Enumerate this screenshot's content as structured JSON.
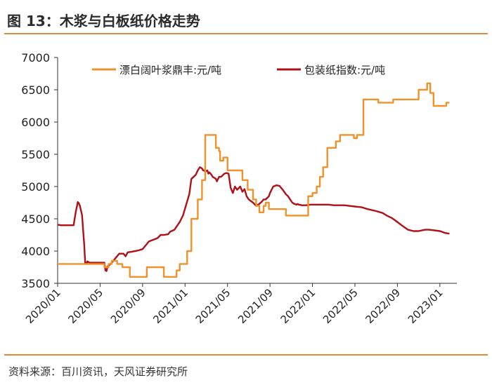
{
  "header": {
    "title": "图 13：木浆与白板纸价格走势"
  },
  "footer": {
    "source": "资料来源：百川资讯，天风证券研究所"
  },
  "colors": {
    "accent": "#E3893A",
    "pulp": "#F0922B",
    "board": "#B01018"
  },
  "chart_data": {
    "type": "line",
    "title": "图 13：木浆与白板纸价格走势",
    "xlabel": "",
    "ylabel": "",
    "ylim": [
      3500,
      7000
    ],
    "yticks": [
      3500,
      4000,
      4500,
      5000,
      5500,
      6000,
      6500,
      7000
    ],
    "xlim": [
      0,
      37.6
    ],
    "xticks": [
      {
        "label": "2020/01",
        "x": 0
      },
      {
        "label": "2020/05",
        "x": 4
      },
      {
        "label": "2020/09",
        "x": 8
      },
      {
        "label": "2021/01",
        "x": 12
      },
      {
        "label": "2021/05",
        "x": 16
      },
      {
        "label": "2021/09",
        "x": 20
      },
      {
        "label": "2022/01",
        "x": 24
      },
      {
        "label": "2022/05",
        "x": 28
      },
      {
        "label": "2022/09",
        "x": 32
      },
      {
        "label": "2023/01",
        "x": 36
      }
    ],
    "legend_position": "top",
    "series": [
      {
        "name": "漂白阔叶浆鼎丰:元/吨",
        "color": "#F0922B",
        "x": [
          0,
          4.4,
          4.4,
          4.8,
          4.8,
          5.1,
          5.1,
          5.6,
          5.6,
          6.1,
          6.1,
          6.8,
          6.8,
          8.4,
          8.4,
          10,
          10,
          11.2,
          11.2,
          11.5,
          11.5,
          12.2,
          12.2,
          12.6,
          12.6,
          13.2,
          13.2,
          13.6,
          13.6,
          13.9,
          13.9,
          14.9,
          14.9,
          15.2,
          15.2,
          15.3,
          15.3,
          15.6,
          15.6,
          16,
          16,
          16.4,
          16.4,
          17.4,
          17.4,
          17.9,
          17.9,
          18.4,
          18.4,
          18.7,
          18.7,
          19,
          19,
          19.4,
          19.4,
          19.6,
          19.6,
          19.9,
          19.9,
          20.5,
          20.5,
          21.5,
          21.5,
          23.6,
          23.6,
          24,
          24,
          24.4,
          24.4,
          24.7,
          24.7,
          25,
          25,
          25.4,
          25.4,
          25.9,
          25.9,
          26.2,
          26.2,
          26.6,
          26.6,
          26.9,
          26.9,
          27.9,
          27.9,
          28.2,
          28.2,
          28.8,
          28.8,
          29.2,
          29.2,
          30.2,
          30.2,
          31.3,
          31.3,
          31.6,
          31.6,
          32.3,
          32.3,
          34,
          34,
          34.8,
          34.8,
          35.1,
          35.1,
          35.4,
          35.4,
          35.7,
          35.7,
          36.6,
          36.6,
          36.9
        ],
        "y": [
          3800,
          3800,
          3750,
          3750,
          3800,
          3800,
          3850,
          3850,
          3800,
          3800,
          3750,
          3750,
          3600,
          3600,
          3750,
          3750,
          3600,
          3600,
          3700,
          3700,
          3800,
          3800,
          4000,
          4000,
          4500,
          4500,
          4800,
          4800,
          5100,
          5100,
          5800,
          5800,
          5600,
          5600,
          5550,
          5550,
          5400,
          5400,
          5450,
          5450,
          5250,
          5250,
          5250,
          5250,
          5100,
          5100,
          4950,
          4950,
          4800,
          4800,
          4700,
          4700,
          4600,
          4600,
          4700,
          4700,
          4750,
          4750,
          4650,
          4650,
          4650,
          4650,
          4550,
          4550,
          4850,
          4850,
          4900,
          4900,
          5000,
          5000,
          5150,
          5150,
          5300,
          5300,
          5600,
          5600,
          5600,
          5600,
          5700,
          5700,
          5800,
          5800,
          5800,
          5800,
          5750,
          5750,
          5800,
          5800,
          6350,
          6350,
          6350,
          6350,
          6300,
          6300,
          6300,
          6300,
          6350,
          6350,
          6350,
          6350,
          6500,
          6500,
          6600,
          6600,
          6450,
          6450,
          6250,
          6250,
          6250,
          6250,
          6300,
          6300
        ]
      },
      {
        "name": "包装纸指数:元/吨",
        "color": "#B01018",
        "x": [
          0,
          0.3,
          1.5,
          1.7,
          1.9,
          2,
          2.1,
          2.3,
          2.5,
          2.6,
          2.7,
          2.75,
          2.8,
          3,
          4.4,
          4.5,
          4.6,
          4.7,
          5,
          5.4,
          5.8,
          6.2,
          6.4,
          6.6,
          7,
          7.6,
          8,
          8.6,
          9.4,
          9.7,
          10,
          10.4,
          10.6,
          11,
          11.5,
          11.8,
          12.4,
          12.6,
          12.8,
          13,
          13.2,
          13.4,
          13.6,
          13.7,
          13.8,
          13.9,
          14,
          14.1,
          14.2,
          14.3,
          14.5,
          14.6,
          14.8,
          14.9,
          15,
          15.2,
          15.4,
          15.7,
          15.9,
          16.1,
          16.3,
          16.5,
          16.7,
          16.9,
          17.2,
          17.4,
          17.6,
          17.8,
          18,
          18.4,
          18.7,
          18.9,
          19.2,
          19.4,
          19.6,
          19.9,
          20,
          20.3,
          20.6,
          20.9,
          21.2,
          21.5,
          21.7,
          21.9,
          22.1,
          22.3,
          22.5,
          22.6,
          22.7,
          23,
          23.4,
          23.8,
          24,
          24.5,
          25.5,
          26,
          27,
          28,
          28.6,
          29.2,
          30,
          30.6,
          31,
          31.5,
          32,
          32.4,
          33,
          33.5,
          34,
          34.6,
          35,
          36,
          36.5,
          36.9
        ],
        "y": [
          4410,
          4400,
          4400,
          4600,
          4760,
          4740,
          4700,
          4560,
          4100,
          3800,
          3820,
          3800,
          3840,
          3820,
          3820,
          3700,
          3690,
          3760,
          3800,
          3880,
          3960,
          3960,
          3920,
          3980,
          3990,
          4010,
          4030,
          4150,
          4200,
          4250,
          4250,
          4260,
          4300,
          4330,
          4450,
          4550,
          4880,
          5120,
          5150,
          5180,
          5250,
          5300,
          5280,
          5250,
          5250,
          5230,
          5240,
          5250,
          5200,
          5220,
          5180,
          5150,
          5130,
          5120,
          5080,
          5150,
          5150,
          5200,
          5210,
          5200,
          4980,
          4900,
          5000,
          4950,
          5000,
          4920,
          4960,
          4850,
          4800,
          4750,
          4700,
          4720,
          4760,
          4800,
          4800,
          4850,
          4900,
          5000,
          5020,
          5010,
          4950,
          4880,
          4850,
          4800,
          4750,
          4730,
          4720,
          4730,
          4720,
          4710,
          4710,
          4720,
          4720,
          4720,
          4720,
          4710,
          4710,
          4690,
          4680,
          4650,
          4620,
          4590,
          4550,
          4510,
          4450,
          4400,
          4330,
          4310,
          4310,
          4330,
          4330,
          4310,
          4280,
          4270
        ]
      }
    ]
  }
}
